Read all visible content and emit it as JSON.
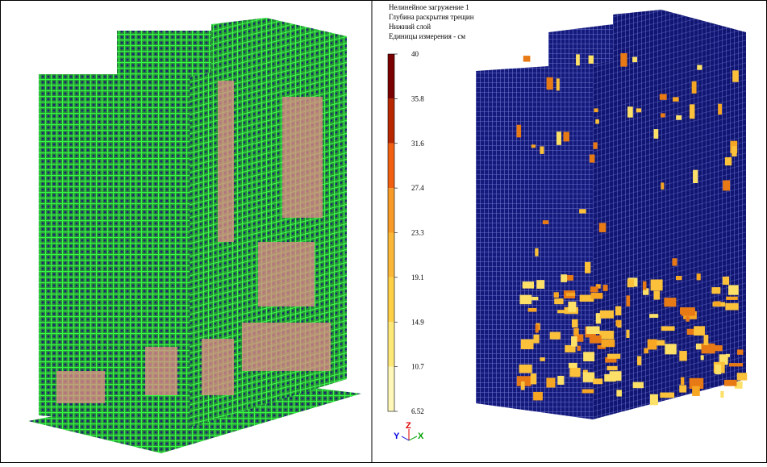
{
  "legend": {
    "title_lines": [
      "Нелинейное загружение 1",
      "Глубина раскрытия трещин",
      "Нижний слой",
      "Единицы измерения - см"
    ],
    "levels": [
      40,
      35.8,
      31.6,
      27.4,
      23.3,
      19.1,
      14.9,
      10.7,
      6.52
    ],
    "colors": [
      "#7a0000",
      "#b82800",
      "#f06010",
      "#f89a28",
      "#fbb838",
      "#fdd048",
      "#fee878",
      "#fff8b8"
    ]
  },
  "axes": {
    "y": "Y",
    "z": "Z",
    "x": "X"
  }
}
